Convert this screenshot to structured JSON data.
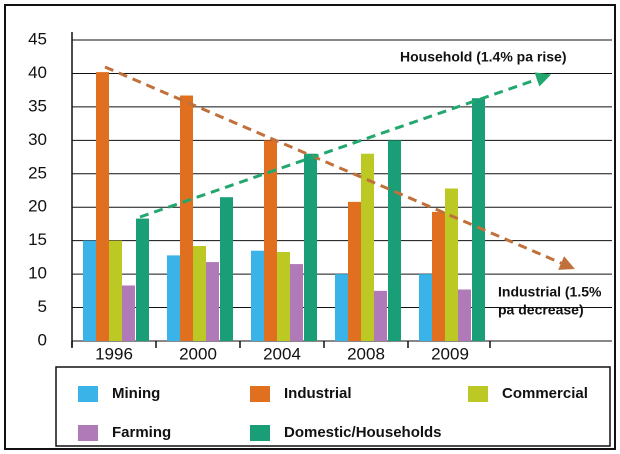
{
  "chart_data": {
    "type": "bar",
    "categories": [
      "1996",
      "2000",
      "2004",
      "2008",
      "2009"
    ],
    "series": [
      {
        "name": "Mining",
        "color": "#3ab4e8",
        "values": [
          15,
          12.8,
          13.5,
          10,
          10
        ]
      },
      {
        "name": "Industrial",
        "color": "#e07020",
        "values": [
          40.2,
          36.7,
          30,
          20.8,
          19.3
        ]
      },
      {
        "name": "Commercial",
        "color": "#bcc823",
        "values": [
          15,
          14.2,
          13.3,
          28,
          22.8
        ]
      },
      {
        "name": "Farming",
        "color": "#b07ab8",
        "values": [
          8.3,
          11.8,
          11.5,
          7.5,
          7.7
        ]
      },
      {
        "name": "Domestic/Households",
        "color": "#1a9e78",
        "values": [
          18.3,
          21.5,
          28,
          30,
          36.3
        ]
      }
    ],
    "ylim": [
      0,
      45
    ],
    "yticks": [
      0,
      5,
      10,
      15,
      20,
      25,
      30,
      35,
      40,
      45
    ],
    "grid": true,
    "annotations": [
      {
        "lines": [
          "Household (1.4% pa rise)"
        ]
      },
      {
        "lines": [
          "Industrial (1.5%",
          "pa decrease)"
        ]
      }
    ]
  }
}
